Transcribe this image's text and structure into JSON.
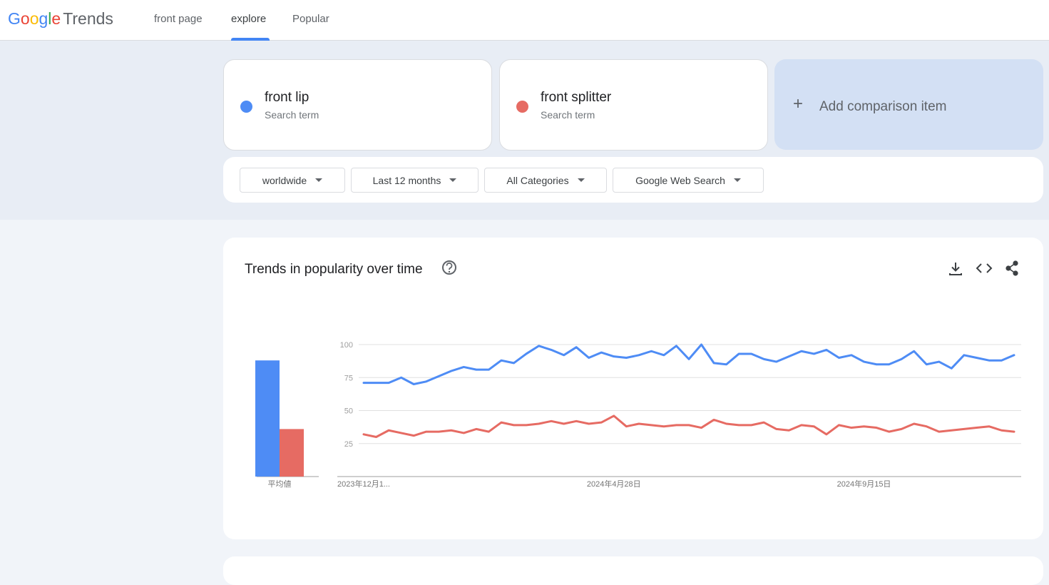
{
  "header": {
    "logo_google": "Google",
    "logo_trends": "Trends",
    "nav": [
      "front page",
      "explore",
      "Popular"
    ],
    "active_nav": 1
  },
  "search": {
    "term_subtitles": [
      "Search term",
      "Search term"
    ],
    "add_item": "Add comparison item",
    "add_icon": "+",
    "filters": [
      "worldwide",
      "Last 12 months",
      "All Categories",
      "Google Web Search"
    ]
  },
  "chart_data": {
    "type": "line",
    "title": "Trends in popularity over time",
    "categories": [
      "2023年12月1...",
      null,
      null,
      null,
      null,
      null,
      null,
      null,
      null,
      null,
      null,
      null,
      null,
      null,
      null,
      null,
      null,
      null,
      null,
      null,
      "2024年4月28日",
      null,
      null,
      null,
      null,
      null,
      null,
      null,
      null,
      null,
      null,
      null,
      null,
      null,
      null,
      null,
      null,
      null,
      null,
      null,
      "2024年9月15日",
      null,
      null,
      null,
      null,
      null,
      null,
      null,
      null,
      null,
      null,
      null,
      null
    ],
    "series": [
      {
        "name": "front lip",
        "color": "#4e8cf5",
        "values": [
          71,
          71,
          71,
          75,
          70,
          72,
          76,
          80,
          83,
          81,
          81,
          88,
          86,
          93,
          99,
          96,
          92,
          98,
          90,
          94,
          91,
          90,
          92,
          95,
          92,
          99,
          89,
          100,
          86,
          85,
          93,
          93,
          89,
          87,
          91,
          95,
          93,
          96,
          90,
          92,
          87,
          85,
          85,
          89,
          95,
          85,
          87,
          82,
          92,
          90,
          88,
          88,
          92
        ]
      },
      {
        "name": "front splitter",
        "color": "#e66b63",
        "values": [
          32,
          30,
          35,
          33,
          31,
          34,
          34,
          35,
          33,
          36,
          34,
          41,
          39,
          39,
          40,
          42,
          40,
          42,
          40,
          41,
          46,
          38,
          40,
          39,
          38,
          39,
          39,
          37,
          43,
          40,
          39,
          39,
          41,
          36,
          35,
          39,
          38,
          32,
          39,
          37,
          38,
          37,
          34,
          36,
          40,
          38,
          34,
          35,
          36,
          37,
          38,
          35,
          34
        ]
      }
    ],
    "averages": {
      "label": "平均値",
      "values": [
        88,
        36
      ]
    },
    "ylim": [
      0,
      100
    ],
    "yticks": [
      25,
      50,
      75,
      100
    ],
    "grid": true
  }
}
